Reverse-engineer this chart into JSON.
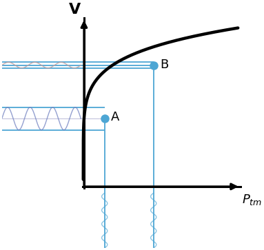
{
  "curve_color": "#000000",
  "curve_lw": 3.2,
  "blue_color": "#4da6d4",
  "blue_lw": 1.3,
  "point_A": [
    0.13,
    0.42
  ],
  "point_B": [
    0.44,
    0.75
  ],
  "label_A": "A",
  "label_B": "B",
  "sine_amp_B": 0.018,
  "sine_amp_A": 0.07,
  "sine_freq_B": 3.0,
  "sine_freq_A": 3.5,
  "background": "#ffffff",
  "xlim": [
    -0.52,
    1.0
  ],
  "ylim": [
    -0.38,
    1.08
  ],
  "x_axis_end": 0.95,
  "y_axis_end": 1.0,
  "sine_xstart": -0.52,
  "sine_xend": -0.02,
  "horiz_xstart": -0.52,
  "vert_ystart": -0.38,
  "vert_sine_yend": -0.04,
  "vert_sine_amp": 0.018,
  "vert_sine_freq": 4,
  "marker_size": 8
}
